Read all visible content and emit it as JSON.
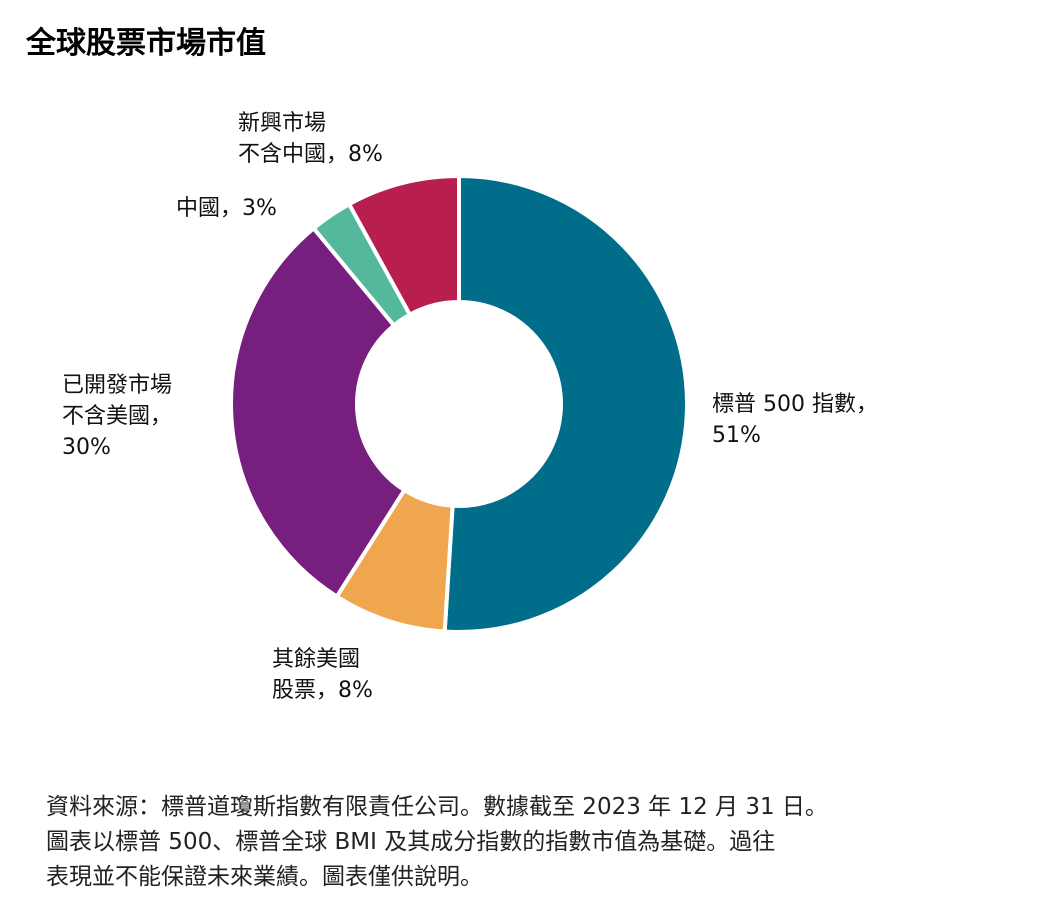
{
  "title": "全球股票市場市值",
  "chart_data": {
    "type": "pie",
    "subtype": "donut",
    "title": "全球股票市場市值",
    "start_angle_deg": 0,
    "direction": "clockwise",
    "categories": [
      "標普 500 指數",
      "其餘美國股票",
      "已開發市場不含美國",
      "中國",
      "新興市場不含中國"
    ],
    "values": [
      51,
      8,
      30,
      3,
      8
    ],
    "unit": "%",
    "colors": [
      "#006e8a",
      "#f0a64e",
      "#761f7e",
      "#53b89c",
      "#b91f4e"
    ],
    "legend": "none (direct labels)"
  },
  "labels": {
    "sp500": {
      "line1": "標普 500 指數，",
      "line2": "51%"
    },
    "rest_us": {
      "line1": "其餘美國",
      "line2": "股票，8%"
    },
    "developed_ex_us": {
      "line1": "已開發市場",
      "line2": "不含美國，",
      "line3": "30%"
    },
    "china": {
      "line1": "中國，3%"
    },
    "emerging_ex_china": {
      "line1": "新興市場",
      "line2": "不含中國，8%"
    }
  },
  "footnote": {
    "line1": "資料來源：標普道瓊斯指數有限責任公司。數據截至 2023 年 12 月 31 日。",
    "line2": "圖表以標普 500、標普全球 BMI 及其成分指數的指數市值為基礎。過往",
    "line3": "表現並不能保證未來業績。圖表僅供說明。"
  }
}
